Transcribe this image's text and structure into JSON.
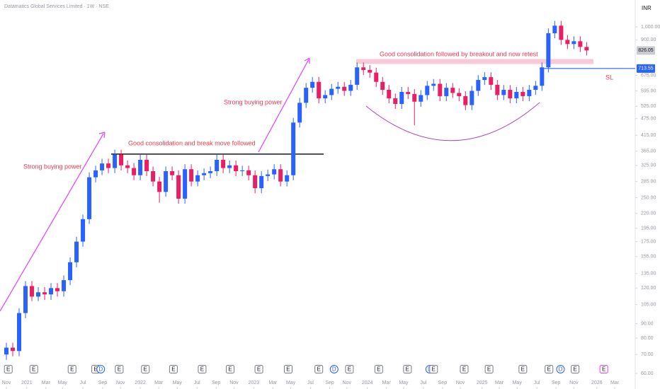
{
  "header": {
    "symbol": "Datamatics Global Services Limited · 1W · NSE",
    "currency": "INR"
  },
  "chart_data": {
    "type": "candlestick",
    "log_scale": true,
    "up_color": "#2962ff",
    "down_color": "#e91e63",
    "xlim": [
      -1,
      98.4
    ],
    "ylim": [
      52.9,
      1244
    ],
    "yticks": [
      {
        "value": 1000,
        "label": "1,000.00"
      },
      {
        "value": 900,
        "label": "900.00"
      },
      {
        "value": 675,
        "label": "675.00"
      },
      {
        "value": 595,
        "label": "595.00"
      },
      {
        "value": 525,
        "label": "525.00"
      },
      {
        "value": 475,
        "label": "475.00"
      },
      {
        "value": 415,
        "label": "415.00"
      },
      {
        "value": 365,
        "label": "365.00"
      },
      {
        "value": 325,
        "label": "325.00"
      },
      {
        "value": 285,
        "label": "285.00"
      },
      {
        "value": 250,
        "label": "250.00"
      },
      {
        "value": 220,
        "label": "220.00"
      },
      {
        "value": 195,
        "label": "195.00"
      },
      {
        "value": 175,
        "label": "175.00"
      },
      {
        "value": 155,
        "label": "155.00"
      },
      {
        "value": 135,
        "label": "135.00"
      },
      {
        "value": 120,
        "label": "120.00"
      },
      {
        "value": 105,
        "label": "105.00"
      },
      {
        "value": 90,
        "label": "90.00"
      },
      {
        "value": 80,
        "label": "80.00"
      },
      {
        "value": 70,
        "label": "70.00"
      },
      {
        "value": 60,
        "label": "60.00"
      }
    ],
    "xticks": [
      {
        "value": 0,
        "label": "Nov"
      },
      {
        "value": 3.2,
        "label": "2021"
      },
      {
        "value": 6.2,
        "label": "Mar"
      },
      {
        "value": 8.8,
        "label": "May"
      },
      {
        "value": 12,
        "label": "Jul"
      },
      {
        "value": 15.1,
        "label": "Sep"
      },
      {
        "value": 17.9,
        "label": "Nov"
      },
      {
        "value": 21,
        "label": "2022"
      },
      {
        "value": 23.9,
        "label": "Mar"
      },
      {
        "value": 26.8,
        "label": "May"
      },
      {
        "value": 29.9,
        "label": "Jul"
      },
      {
        "value": 32.9,
        "label": "Sep"
      },
      {
        "value": 35.7,
        "label": "Nov"
      },
      {
        "value": 38.8,
        "label": "2023"
      },
      {
        "value": 41.8,
        "label": "Mar"
      },
      {
        "value": 44.6,
        "label": "May"
      },
      {
        "value": 47.7,
        "label": "Jul"
      },
      {
        "value": 50.7,
        "label": "Sep"
      },
      {
        "value": 53.4,
        "label": "Nov"
      },
      {
        "value": 56.6,
        "label": "2024"
      },
      {
        "value": 59.6,
        "label": "Mar"
      },
      {
        "value": 62.3,
        "label": "May"
      },
      {
        "value": 65.4,
        "label": "Jul"
      },
      {
        "value": 68.4,
        "label": "Sep"
      },
      {
        "value": 71.2,
        "label": "Nov"
      },
      {
        "value": 74.6,
        "label": "2025"
      },
      {
        "value": 77.3,
        "label": "Mar"
      },
      {
        "value": 80.1,
        "label": "May"
      },
      {
        "value": 83.2,
        "label": "Jul"
      },
      {
        "value": 86.2,
        "label": "Sep"
      },
      {
        "value": 89,
        "label": "Nov"
      },
      {
        "value": 92.6,
        "label": "2026"
      },
      {
        "value": 95.4,
        "label": "Mar"
      }
    ],
    "ohlc": [
      [
        70,
        77,
        67,
        74
      ],
      [
        74,
        77,
        69,
        72
      ],
      [
        72,
        102,
        69,
        98
      ],
      [
        98,
        127,
        94,
        122
      ],
      [
        122,
        127,
        108,
        112
      ],
      [
        112,
        121,
        108,
        116
      ],
      [
        116,
        121,
        109,
        114
      ],
      [
        114,
        125,
        109,
        120
      ],
      [
        120,
        125,
        112,
        117
      ],
      [
        117,
        133,
        112,
        128
      ],
      [
        128,
        154,
        123,
        148
      ],
      [
        148,
        182,
        142,
        175
      ],
      [
        175,
        218,
        168,
        210
      ],
      [
        210,
        307,
        202,
        295
      ],
      [
        295,
        324,
        283,
        312
      ],
      [
        312,
        343,
        300,
        330
      ],
      [
        330,
        343,
        305,
        318
      ],
      [
        318,
        369,
        305,
        355
      ],
      [
        355,
        369,
        312,
        325
      ],
      [
        325,
        338,
        305,
        318
      ],
      [
        318,
        331,
        288,
        300
      ],
      [
        300,
        354,
        288,
        340
      ],
      [
        340,
        354,
        298,
        310
      ],
      [
        310,
        322,
        274,
        285
      ],
      [
        285,
        296,
        240,
        262
      ],
      [
        262,
        322,
        252,
        310
      ],
      [
        310,
        322,
        288,
        300
      ],
      [
        300,
        312,
        238,
        248
      ],
      [
        248,
        328,
        238,
        315
      ],
      [
        315,
        328,
        274,
        285
      ],
      [
        285,
        312,
        274,
        300
      ],
      [
        300,
        317,
        288,
        305
      ],
      [
        305,
        322,
        293,
        310
      ],
      [
        310,
        354,
        298,
        340
      ],
      [
        340,
        354,
        305,
        318
      ],
      [
        318,
        338,
        305,
        325
      ],
      [
        325,
        338,
        298,
        310
      ],
      [
        310,
        324,
        298,
        312
      ],
      [
        312,
        324,
        288,
        300
      ],
      [
        300,
        312,
        259,
        270
      ],
      [
        270,
        310,
        259,
        298
      ],
      [
        298,
        314,
        286,
        302
      ],
      [
        302,
        328,
        290,
        315
      ],
      [
        315,
        328,
        274,
        285
      ],
      [
        285,
        312,
        274,
        300
      ],
      [
        300,
        478,
        288,
        460
      ],
      [
        460,
        562,
        442,
        540
      ],
      [
        540,
        634,
        518,
        610
      ],
      [
        610,
        666,
        586,
        640
      ],
      [
        640,
        666,
        538,
        560
      ],
      [
        560,
        598,
        538,
        575
      ],
      [
        575,
        629,
        552,
        605
      ],
      [
        605,
        640,
        581,
        615
      ],
      [
        615,
        640,
        571,
        595
      ],
      [
        595,
        650,
        571,
        625
      ],
      [
        625,
        749,
        600,
        720
      ],
      [
        720,
        749,
        677,
        705
      ],
      [
        705,
        733,
        662,
        690
      ],
      [
        690,
        718,
        614,
        640
      ],
      [
        640,
        666,
        576,
        600
      ],
      [
        600,
        624,
        538,
        560
      ],
      [
        560,
        582,
        514,
        535
      ],
      [
        535,
        614,
        514,
        590
      ],
      [
        590,
        614,
        557,
        580
      ],
      [
        580,
        603,
        450,
        545
      ],
      [
        545,
        598,
        523,
        575
      ],
      [
        575,
        645,
        552,
        620
      ],
      [
        620,
        655,
        595,
        630
      ],
      [
        630,
        655,
        547,
        570
      ],
      [
        570,
        634,
        547,
        610
      ],
      [
        610,
        634,
        562,
        585
      ],
      [
        585,
        608,
        547,
        570
      ],
      [
        570,
        593,
        509,
        530
      ],
      [
        530,
        619,
        509,
        595
      ],
      [
        595,
        676,
        571,
        650
      ],
      [
        650,
        692,
        624,
        665
      ],
      [
        665,
        692,
        600,
        625
      ],
      [
        625,
        650,
        552,
        575
      ],
      [
        575,
        624,
        552,
        600
      ],
      [
        600,
        624,
        538,
        560
      ],
      [
        560,
        614,
        538,
        590
      ],
      [
        590,
        614,
        547,
        570
      ],
      [
        570,
        624,
        547,
        600
      ],
      [
        600,
        645,
        576,
        620
      ],
      [
        620,
        749,
        595,
        720
      ],
      [
        720,
        988,
        691,
        950
      ],
      [
        950,
        1050,
        912,
        1010
      ],
      [
        1010,
        1050,
        864,
        900
      ],
      [
        900,
        936,
        835,
        870
      ],
      [
        870,
        926,
        835,
        890
      ],
      [
        890,
        926,
        816,
        850
      ],
      [
        850,
        884,
        793,
        826.05
      ]
    ],
    "resistance": 356,
    "retest_zone": [
      740,
      770
    ],
    "stop_loss": 713.55,
    "stop_loss_label": "SL",
    "annotations": [
      "Strong buying power",
      "Good consolidation and break move followed",
      "Strong buying power",
      "Good consolidation followed by breakout and now retest"
    ],
    "events": [
      {
        "x": 0.3,
        "label": "E"
      },
      {
        "x": 4.3,
        "label": "E"
      },
      {
        "x": 10.3,
        "label": "E"
      },
      {
        "x": 14,
        "label": "E"
      },
      {
        "x": 14.8,
        "label": "D"
      },
      {
        "x": 17.7,
        "label": "E"
      },
      {
        "x": 21.8,
        "label": "E"
      },
      {
        "x": 26.2,
        "label": "E"
      },
      {
        "x": 30.7,
        "label": "E"
      },
      {
        "x": 35.1,
        "label": "E"
      },
      {
        "x": 39.6,
        "label": "E"
      },
      {
        "x": 44.2,
        "label": "E"
      },
      {
        "x": 49,
        "label": "E"
      },
      {
        "x": 51.4,
        "label": "D"
      },
      {
        "x": 53.8,
        "label": "E"
      },
      {
        "x": 58.4,
        "label": "E"
      },
      {
        "x": 62.9,
        "label": "E"
      },
      {
        "x": 66.4,
        "label": "D"
      },
      {
        "x": 67,
        "label": "E"
      },
      {
        "x": 71.8,
        "label": "E"
      },
      {
        "x": 75.7,
        "label": "E"
      },
      {
        "x": 81,
        "label": "E"
      },
      {
        "x": 85.1,
        "label": "E"
      },
      {
        "x": 86.9,
        "label": "D"
      },
      {
        "x": 89.2,
        "label": "E"
      },
      {
        "x": 93.7,
        "label": "E"
      }
    ]
  }
}
